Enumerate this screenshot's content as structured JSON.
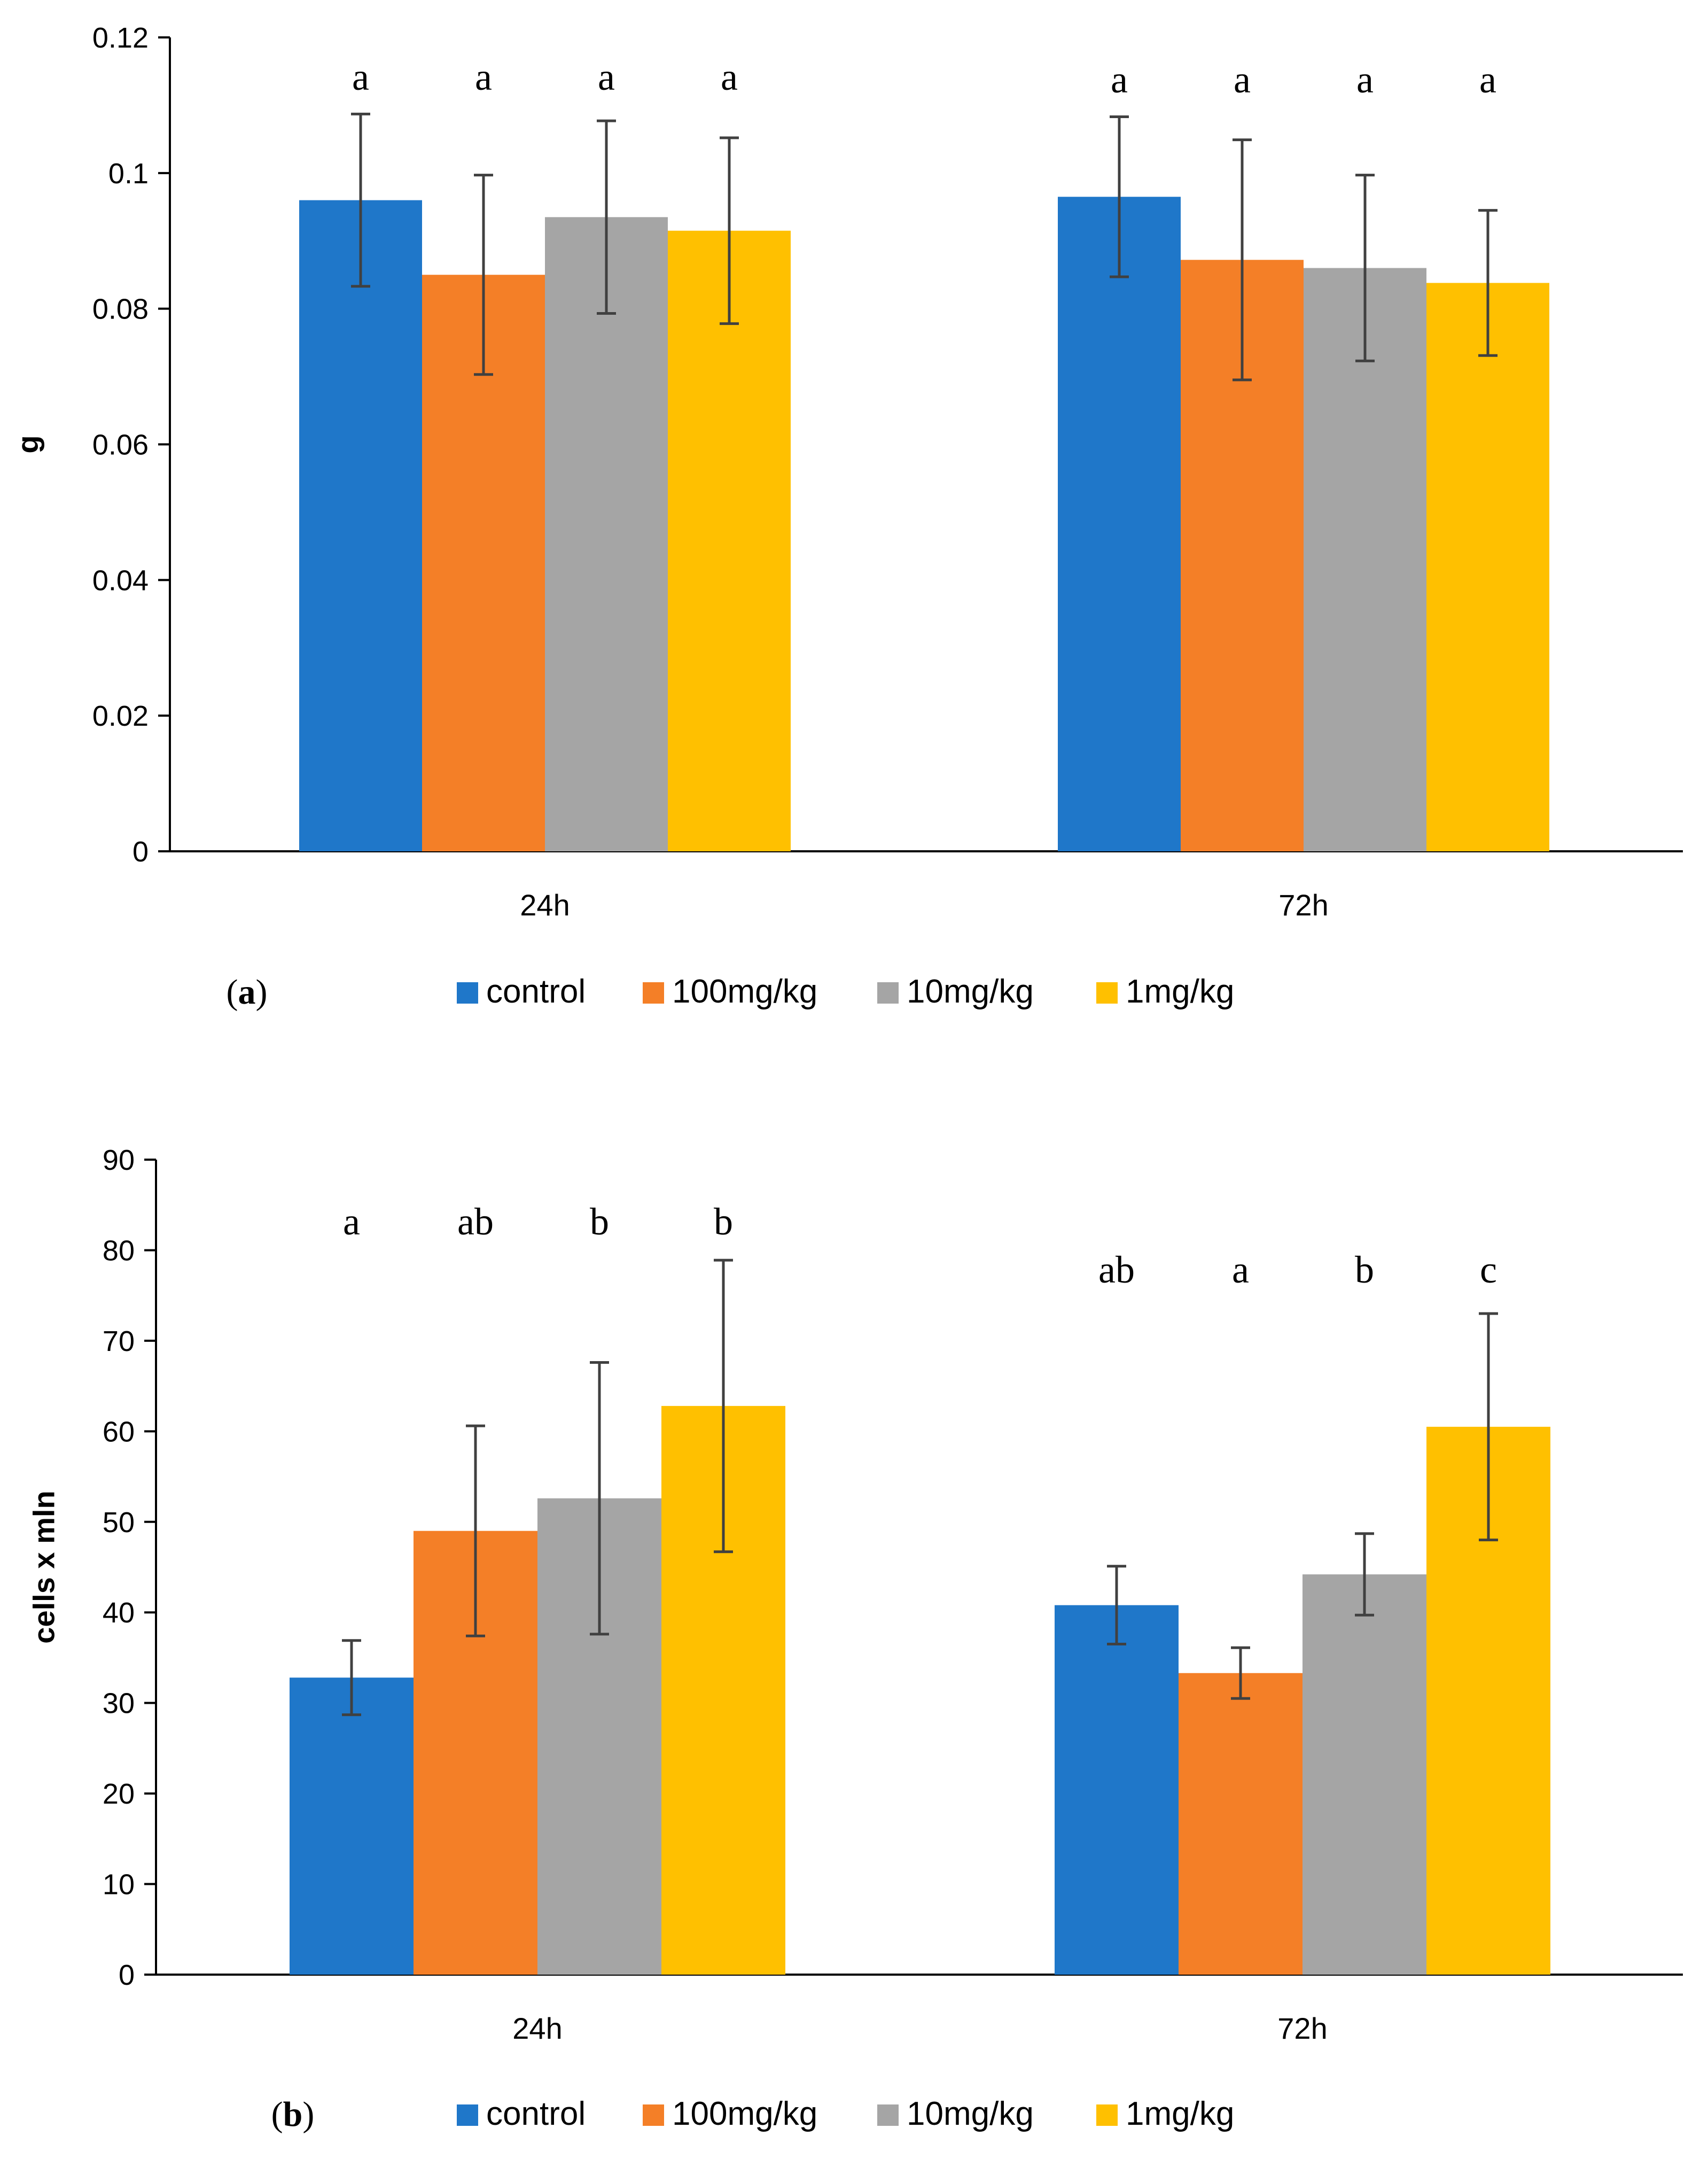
{
  "chart_data": [
    {
      "type": "bar",
      "panel_label": {
        "open": "(",
        "letter": "a",
        "close": ")"
      },
      "title": "",
      "xlabel": "",
      "ylabel": "g",
      "ylim": [
        0,
        0.12
      ],
      "yticks": [
        0,
        0.02,
        0.04,
        0.06,
        0.08,
        0.1,
        0.12
      ],
      "ytick_labels": [
        "0",
        "0.02",
        "0.04",
        "0.06",
        "0.08",
        "0.1",
        "0.12"
      ],
      "categories": [
        "24h",
        "72h"
      ],
      "grid": false,
      "legend_position": "bottom",
      "series": [
        {
          "name": "control",
          "color": "#1f77c9",
          "values": [
            0.096,
            0.0965
          ],
          "errors": [
            0.0127,
            0.0118
          ],
          "letters": [
            "a",
            "a"
          ]
        },
        {
          "name": "100mg/kg",
          "color": "#f47f27",
          "values": [
            0.085,
            0.0872
          ],
          "errors": [
            0.0147,
            0.0177
          ],
          "letters": [
            "a",
            "a"
          ]
        },
        {
          "name": "10mg/kg",
          "color": "#a5a5a5",
          "values": [
            0.0935,
            0.086
          ],
          "errors": [
            0.0142,
            0.0137
          ],
          "letters": [
            "a",
            "a"
          ]
        },
        {
          "name": "1mg/kg",
          "color": "#ffc000",
          "values": [
            0.0915,
            0.0838
          ],
          "errors": [
            0.0137,
            0.0107
          ],
          "letters": [
            "a",
            "a"
          ]
        }
      ]
    },
    {
      "type": "bar",
      "panel_label": {
        "open": "(",
        "letter": "b",
        "close": ")"
      },
      "title": "",
      "xlabel": "",
      "ylabel": "cells x mln",
      "ylim": [
        0,
        90
      ],
      "yticks": [
        0,
        10,
        20,
        30,
        40,
        50,
        60,
        70,
        80,
        90
      ],
      "ytick_labels": [
        "0",
        "10",
        "20",
        "30",
        "40",
        "50",
        "60",
        "70",
        "80",
        "90"
      ],
      "categories": [
        "24h",
        "72h"
      ],
      "grid": false,
      "legend_position": "bottom",
      "series": [
        {
          "name": "control",
          "color": "#1f77c9",
          "values": [
            32.8,
            40.8
          ],
          "errors": [
            4.1,
            4.3
          ],
          "letters": [
            "a",
            "ab"
          ]
        },
        {
          "name": "100mg/kg",
          "color": "#f47f27",
          "values": [
            49,
            33.3
          ],
          "errors": [
            11.6,
            2.8
          ],
          "letters": [
            "ab",
            "a"
          ]
        },
        {
          "name": "10mg/kg",
          "color": "#a5a5a5",
          "values": [
            52.6,
            44.2
          ],
          "errors": [
            15,
            4.5
          ],
          "letters": [
            "b",
            "b"
          ]
        },
        {
          "name": "1mg/kg",
          "color": "#ffc000",
          "values": [
            62.8,
            60.5
          ],
          "errors": [
            16.1,
            12.5
          ],
          "letters": [
            "b",
            "c"
          ]
        }
      ]
    }
  ]
}
